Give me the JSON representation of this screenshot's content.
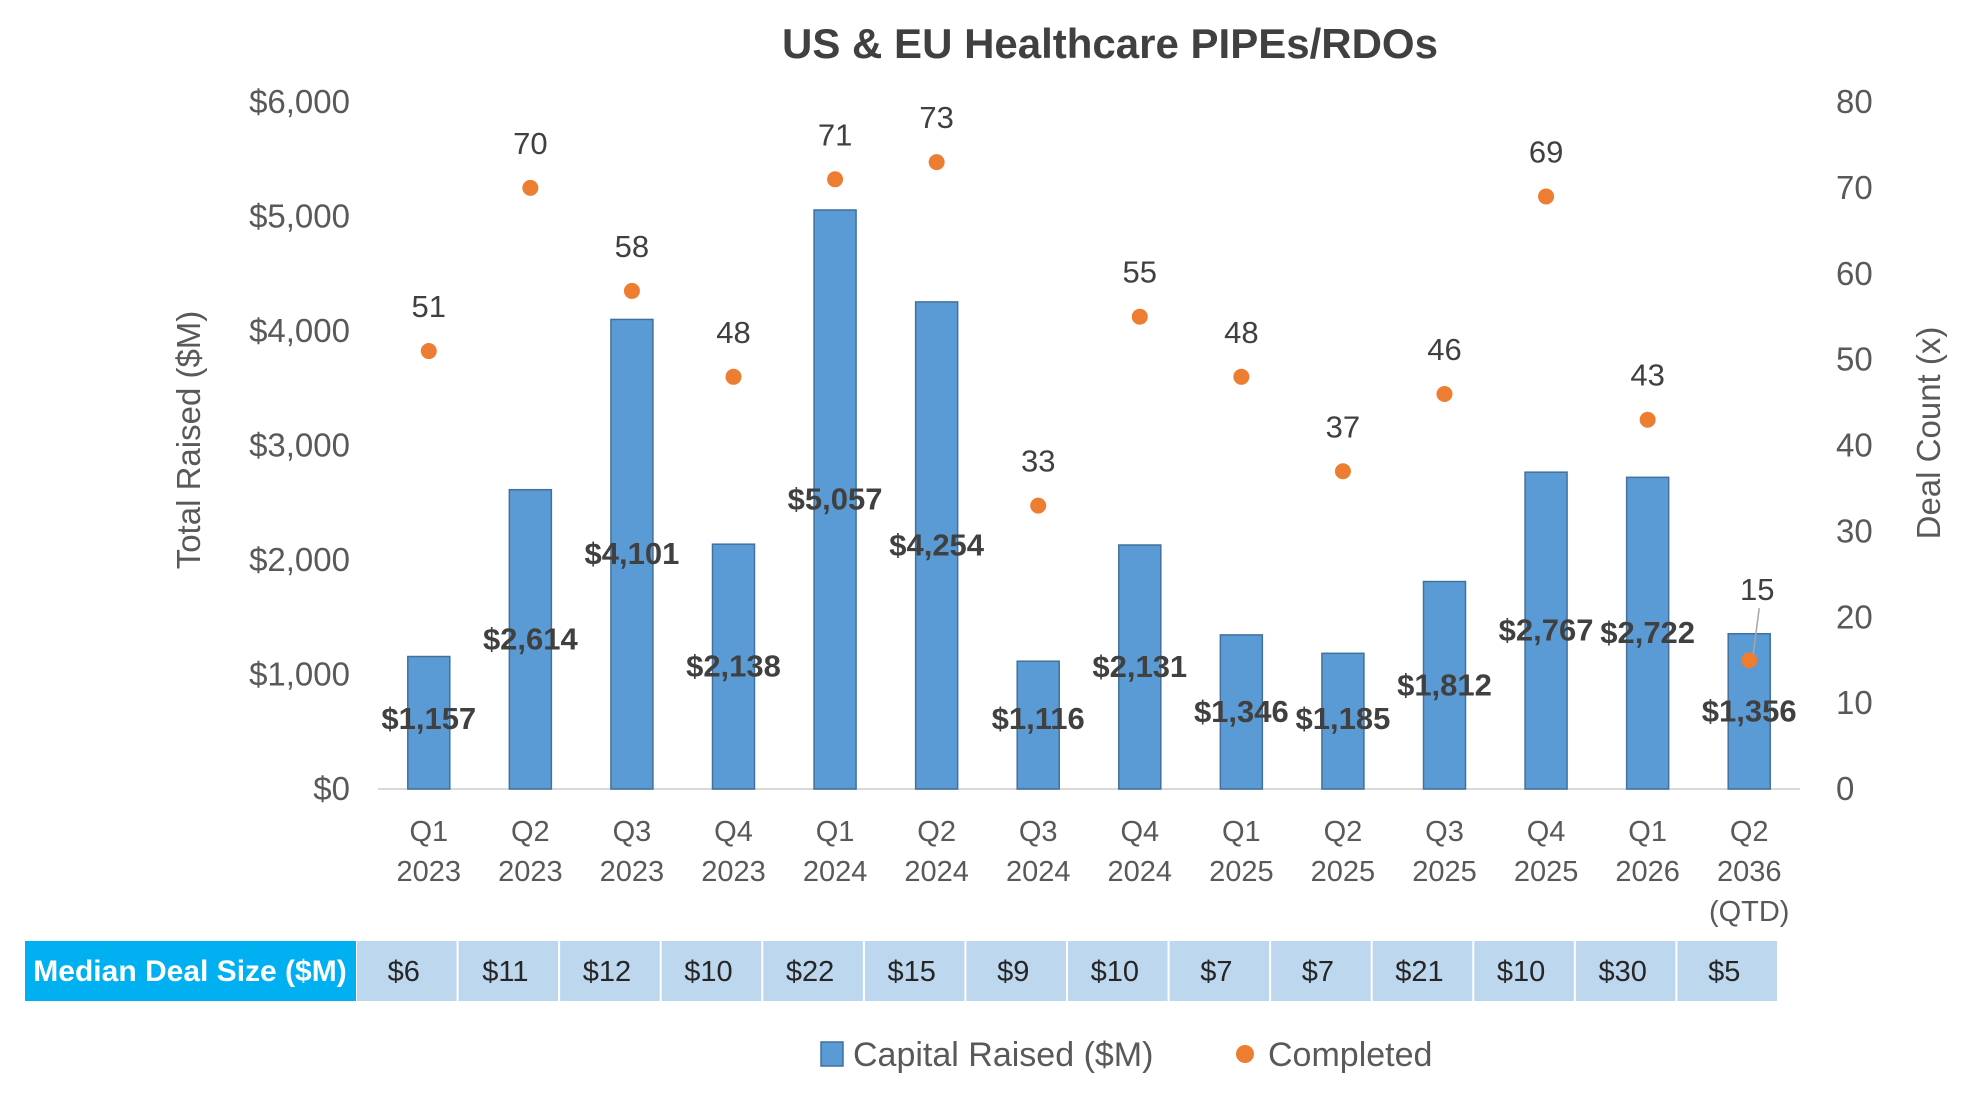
{
  "chart_data": {
    "type": "bar",
    "title": "US & EU Healthcare PIPEs/RDOs",
    "ylabel": "Total Raised ($M)",
    "y2label": "Deal Count (x)",
    "ylim": [
      0,
      6000
    ],
    "y2lim": [
      0,
      80
    ],
    "y_ticks": [
      "$0",
      "$1,000",
      "$2,000",
      "$3,000",
      "$4,000",
      "$5,000",
      "$6,000"
    ],
    "y2_ticks": [
      "0",
      "10",
      "20",
      "30",
      "40",
      "50",
      "60",
      "70",
      "80"
    ],
    "grid": false,
    "categories": [
      [
        "Q1",
        "2023"
      ],
      [
        "Q2",
        "2023"
      ],
      [
        "Q3",
        "2023"
      ],
      [
        "Q4",
        "2023"
      ],
      [
        "Q1",
        "2024"
      ],
      [
        "Q2",
        "2024"
      ],
      [
        "Q3",
        "2024"
      ],
      [
        "Q4",
        "2024"
      ],
      [
        "Q1",
        "2025"
      ],
      [
        "Q2",
        "2025"
      ],
      [
        "Q3",
        "2025"
      ],
      [
        "Q4",
        "2025"
      ],
      [
        "Q1",
        "2026"
      ],
      [
        "Q2",
        "2036",
        "(QTD)"
      ]
    ],
    "series": [
      {
        "name": "Capital Raised ($M)",
        "kind": "bar",
        "axis": "left",
        "color": "#5B9BD5",
        "values": [
          1157,
          2614,
          4101,
          2138,
          5057,
          4254,
          1116,
          2131,
          1346,
          1185,
          1812,
          2767,
          2722,
          1356
        ],
        "labels": [
          "$1,157",
          "$2,614",
          "$4,101",
          "$2,138",
          "$5,057",
          "$4,254",
          "$1,116",
          "$2,131",
          "$1,346",
          "$1,185",
          "$1,812",
          "$2,767",
          "$2,722",
          "$1,356"
        ]
      },
      {
        "name": "Completed",
        "kind": "scatter",
        "axis": "right",
        "color": "#ED7D31",
        "values": [
          51,
          70,
          58,
          48,
          71,
          73,
          33,
          55,
          48,
          37,
          46,
          69,
          43,
          15
        ],
        "labels": [
          "51",
          "70",
          "58",
          "48",
          "71",
          "73",
          "33",
          "55",
          "48",
          "37",
          "46",
          "69",
          "43",
          "15"
        ]
      }
    ],
    "median_table": {
      "label": "Median Deal Size ($M)",
      "values": [
        "$6",
        "$11",
        "$12",
        "$10",
        "$22",
        "$15",
        "$9",
        "$10",
        "$7",
        "$7",
        "$21",
        "$10",
        "$30",
        "$5"
      ]
    },
    "legend": {
      "position": "bottom",
      "items": [
        "Capital Raised ($M)",
        "Completed"
      ]
    }
  },
  "colors": {
    "bar": "#5B9BD5",
    "bar_edge": "#41719C",
    "dot": "#ED7D31",
    "table_header": "#00B0F0",
    "table_cell": "#BDD7EE",
    "axis_line": "#D9D9D9"
  }
}
